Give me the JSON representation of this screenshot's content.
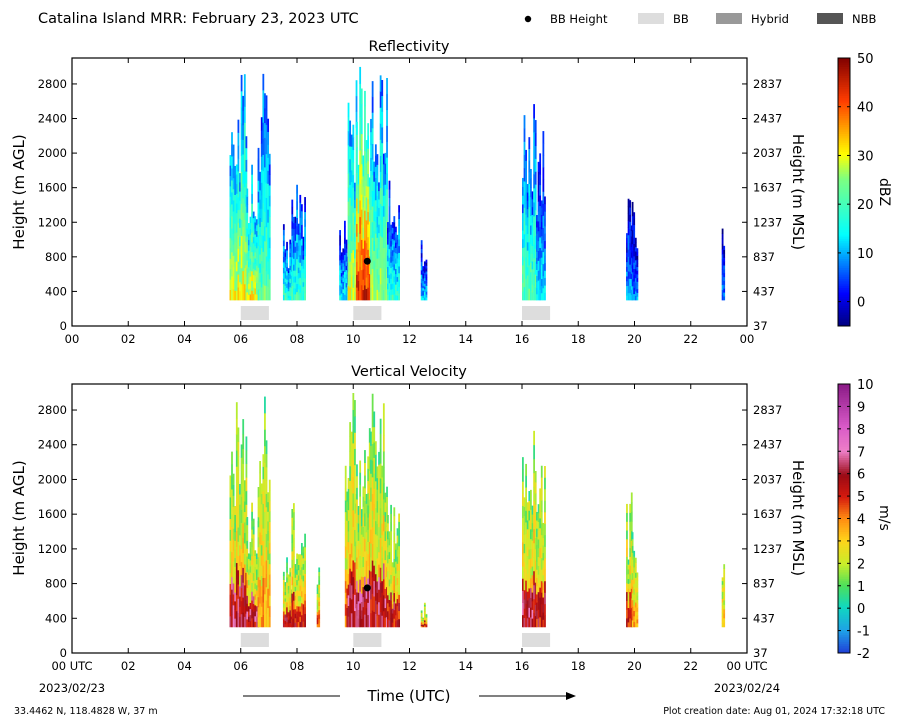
{
  "header": {
    "title": "Catalina Island MRR:  February 23, 2023 UTC",
    "legend": [
      {
        "label": "BB Height",
        "kind": "dot",
        "color": "#000000"
      },
      {
        "label": "BB",
        "kind": "box",
        "color": "#dddddd"
      },
      {
        "label": "Hybrid",
        "kind": "box",
        "color": "#999999"
      },
      {
        "label": "NBB",
        "kind": "box",
        "color": "#555555"
      }
    ]
  },
  "footer": {
    "xlabel": "Time (UTC)",
    "start_date": "2023/02/23",
    "end_date": "2023/02/24",
    "location": "33.4462 N, 118.4828 W, 37 m",
    "creation": "Plot creation date: Aug 01, 2024 17:32:18 UTC"
  },
  "chart_data": [
    {
      "type": "heatmap",
      "title": "Reflectivity",
      "ylabel": "Height (m AGL)",
      "y2label": "Height (m MSL)",
      "xlim": [
        0,
        24
      ],
      "ylim": [
        0,
        3100
      ],
      "x_ticks": [
        "00",
        "02",
        "04",
        "06",
        "08",
        "10",
        "12",
        "14",
        "16",
        "18",
        "20",
        "22",
        "00"
      ],
      "y_ticks": [
        0,
        400,
        800,
        1200,
        1600,
        2000,
        2400,
        2800
      ],
      "y2_ticks": [
        37,
        437,
        837,
        1237,
        1637,
        2037,
        2437,
        2837
      ],
      "colorbar": {
        "label": "dBZ",
        "min": -5,
        "max": 50,
        "ticks": [
          0,
          10,
          20,
          30,
          40,
          50
        ]
      },
      "bb_height": [
        {
          "time": 10.5,
          "height": 750
        }
      ],
      "bb_periods": [
        [
          6.0,
          7.0
        ],
        [
          10.0,
          11.0
        ],
        [
          16.0,
          17.0
        ]
      ],
      "echo_spans": [
        {
          "t0": 5.6,
          "t1": 6.2,
          "top": 3000,
          "peak": 30
        },
        {
          "t0": 6.2,
          "t1": 6.6,
          "top": 2000,
          "peak": 30
        },
        {
          "t0": 6.6,
          "t1": 7.0,
          "top": 3000,
          "peak": 22
        },
        {
          "t0": 7.5,
          "t1": 7.8,
          "top": 1200,
          "peak": 18
        },
        {
          "t0": 7.8,
          "t1": 8.3,
          "top": 1800,
          "peak": 18
        },
        {
          "t0": 9.5,
          "t1": 9.8,
          "top": 1400,
          "peak": 14
        },
        {
          "t0": 9.8,
          "t1": 10.1,
          "top": 3000,
          "peak": 30
        },
        {
          "t0": 10.1,
          "t1": 10.6,
          "top": 3000,
          "peak": 44
        },
        {
          "t0": 10.6,
          "t1": 11.2,
          "top": 3000,
          "peak": 26
        },
        {
          "t0": 11.2,
          "t1": 11.6,
          "top": 1800,
          "peak": 18
        },
        {
          "t0": 12.4,
          "t1": 12.6,
          "top": 1100,
          "peak": 12
        },
        {
          "t0": 16.0,
          "t1": 16.5,
          "top": 2600,
          "peak": 22
        },
        {
          "t0": 16.5,
          "t1": 16.8,
          "top": 2300,
          "peak": 14
        },
        {
          "t0": 19.7,
          "t1": 19.9,
          "top": 1900,
          "peak": 10
        },
        {
          "t0": 19.9,
          "t1": 20.1,
          "top": 1500,
          "peak": 8
        },
        {
          "t0": 23.1,
          "t1": 23.2,
          "top": 1200,
          "peak": 8
        }
      ]
    },
    {
      "type": "heatmap",
      "title": "Vertical Velocity",
      "ylabel": "Height (m AGL)",
      "y2label": "Height (m MSL)",
      "xlim": [
        0,
        24
      ],
      "ylim": [
        0,
        3100
      ],
      "x_ticks": [
        "00 UTC",
        "02",
        "04",
        "06",
        "08",
        "10",
        "12",
        "14",
        "16",
        "18",
        "20",
        "22",
        "00 UTC"
      ],
      "y_ticks": [
        0,
        400,
        800,
        1200,
        1600,
        2000,
        2400,
        2800
      ],
      "y2_ticks": [
        37,
        437,
        837,
        1237,
        1637,
        2037,
        2437,
        2837
      ],
      "colorbar": {
        "label": "m/s",
        "min": -2,
        "max": 10,
        "ticks": [
          -2,
          -1,
          0,
          1,
          2,
          3,
          4,
          5,
          6,
          7,
          8,
          9,
          10
        ]
      },
      "bb_height": [
        {
          "time": 10.5,
          "height": 750
        }
      ],
      "bb_periods": [
        [
          6.0,
          7.0
        ],
        [
          10.0,
          11.0
        ],
        [
          16.0,
          17.0
        ]
      ],
      "echo_spans": [
        {
          "t0": 5.6,
          "t1": 6.2,
          "top": 3000,
          "peak": 6.5
        },
        {
          "t0": 6.2,
          "t1": 6.6,
          "top": 2000,
          "peak": 6.5
        },
        {
          "t0": 6.6,
          "t1": 7.0,
          "top": 3000,
          "peak": 4
        },
        {
          "t0": 7.5,
          "t1": 7.8,
          "top": 1200,
          "peak": 6
        },
        {
          "t0": 7.8,
          "t1": 8.3,
          "top": 1800,
          "peak": 6
        },
        {
          "t0": 8.7,
          "t1": 8.8,
          "top": 1200,
          "peak": 5
        },
        {
          "t0": 9.7,
          "t1": 9.8,
          "top": 3000,
          "peak": 5
        },
        {
          "t0": 9.8,
          "t1": 10.1,
          "top": 3000,
          "peak": 6.5
        },
        {
          "t0": 10.1,
          "t1": 10.6,
          "top": 3000,
          "peak": 7
        },
        {
          "t0": 10.6,
          "t1": 11.2,
          "top": 3000,
          "peak": 6.5
        },
        {
          "t0": 11.2,
          "t1": 11.6,
          "top": 1800,
          "peak": 6
        },
        {
          "t0": 12.4,
          "t1": 12.6,
          "top": 700,
          "peak": 5.5
        },
        {
          "t0": 16.0,
          "t1": 16.5,
          "top": 2600,
          "peak": 6.5
        },
        {
          "t0": 16.5,
          "t1": 16.8,
          "top": 2300,
          "peak": 6
        },
        {
          "t0": 19.7,
          "t1": 19.9,
          "top": 1900,
          "peak": 5.5
        },
        {
          "t0": 19.9,
          "t1": 20.1,
          "top": 1500,
          "peak": 4
        },
        {
          "t0": 23.1,
          "t1": 23.2,
          "top": 1200,
          "peak": 3.5
        }
      ]
    }
  ]
}
